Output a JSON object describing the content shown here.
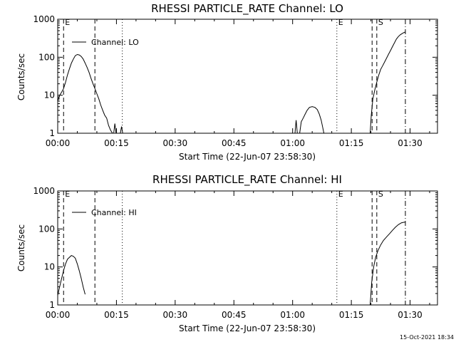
{
  "footer_timestamp": "15-Oct-2021 18:34",
  "chart_data": [
    {
      "type": "line",
      "title": "RHESSI PARTICLE_RATE Channel: LO",
      "xlabel": "Start Time (22-Jun-07 23:58:30)",
      "ylabel": "Counts/sec",
      "xunit": "minutes",
      "xlim": [
        0,
        97
      ],
      "ylim": [
        1,
        1000
      ],
      "yscale": "log",
      "x_ticks": [
        {
          "value": 0,
          "label": "00:00"
        },
        {
          "value": 15,
          "label": "00:15"
        },
        {
          "value": 30,
          "label": "00:30"
        },
        {
          "value": 45,
          "label": "00:45"
        },
        {
          "value": 60,
          "label": "01:00"
        },
        {
          "value": 75,
          "label": "01:15"
        },
        {
          "value": 90,
          "label": "01:30"
        }
      ],
      "y_ticks": [
        {
          "value": 1,
          "label": "1"
        },
        {
          "value": 10,
          "label": "10"
        },
        {
          "value": 100,
          "label": "100"
        },
        {
          "value": 1000,
          "label": "1000"
        }
      ],
      "legend": {
        "position": "top-left",
        "label": "Channel: LO"
      },
      "markers": [
        {
          "x": 1.5,
          "style": "dashed",
          "label": "E"
        },
        {
          "x": 9.5,
          "style": "dashed",
          "label": ""
        },
        {
          "x": 16.5,
          "style": "dotted",
          "label": ""
        },
        {
          "x": 71.3,
          "style": "dotted",
          "label": "E"
        },
        {
          "x": 80.3,
          "style": "dashed",
          "label": ""
        },
        {
          "x": 81.5,
          "style": "dashed",
          "label": "S"
        },
        {
          "x": 88.8,
          "style": "dashdot",
          "label": ""
        }
      ],
      "series": [
        {
          "segments": [
            [
              [
                0,
                7
              ],
              [
                0.5,
                10
              ],
              [
                1,
                12
              ],
              [
                1.5,
                15
              ],
              [
                2,
                22
              ],
              [
                2.5,
                34
              ],
              [
                3,
                50
              ],
              [
                3.5,
                70
              ],
              [
                4,
                90
              ],
              [
                4.5,
                110
              ],
              [
                5,
                118
              ],
              [
                5.5,
                115
              ],
              [
                6,
                105
              ],
              [
                6.5,
                90
              ],
              [
                7,
                70
              ],
              [
                7.5,
                54
              ],
              [
                8,
                40
              ],
              [
                8.5,
                28
              ],
              [
                9,
                20
              ],
              [
                9.5,
                15
              ],
              [
                10,
                11
              ],
              [
                10.5,
                8
              ],
              [
                11,
                5.5
              ],
              [
                11.5,
                4
              ],
              [
                12,
                3
              ],
              [
                12.5,
                2.5
              ],
              [
                13,
                1.6
              ],
              [
                13.5,
                1.2
              ],
              [
                14,
                1
              ]
            ],
            [
              [
                14.3,
                1
              ],
              [
                14.6,
                1.8
              ],
              [
                14.9,
                1
              ]
            ],
            [
              [
                16,
                1
              ],
              [
                16.3,
                1.5
              ],
              [
                16.6,
                1
              ]
            ],
            [
              [
                60.6,
                1
              ],
              [
                60.9,
                2.2
              ],
              [
                61.2,
                1
              ]
            ],
            [
              [
                61.8,
                1
              ],
              [
                62.2,
                2
              ],
              [
                62.7,
                2.5
              ],
              [
                63.2,
                3.2
              ],
              [
                63.7,
                4
              ],
              [
                64.3,
                4.8
              ],
              [
                65,
                5
              ],
              [
                65.7,
                4.8
              ],
              [
                66.3,
                4.2
              ],
              [
                66.8,
                3.2
              ],
              [
                67.3,
                2.2
              ],
              [
                67.7,
                1.4
              ],
              [
                68,
                1
              ]
            ],
            [
              [
                79.8,
                1
              ],
              [
                80.1,
                3
              ],
              [
                80.5,
                8
              ],
              [
                81,
                14
              ],
              [
                81.5,
                22
              ],
              [
                82,
                34
              ],
              [
                82.5,
                48
              ],
              [
                83,
                60
              ],
              [
                83.5,
                75
              ],
              [
                84,
                95
              ],
              [
                84.5,
                120
              ],
              [
                85,
                150
              ],
              [
                85.5,
                190
              ],
              [
                86,
                240
              ],
              [
                86.5,
                300
              ],
              [
                87,
                350
              ],
              [
                87.5,
                390
              ],
              [
                88,
                420
              ],
              [
                88.5,
                450
              ],
              [
                88.8,
                460
              ]
            ]
          ]
        }
      ]
    },
    {
      "type": "line",
      "title": "RHESSI PARTICLE_RATE Channel: HI",
      "xlabel": "Start Time (22-Jun-07 23:58:30)",
      "ylabel": "Counts/sec",
      "xunit": "minutes",
      "xlim": [
        0,
        97
      ],
      "ylim": [
        1,
        1000
      ],
      "yscale": "log",
      "x_ticks": [
        {
          "value": 0,
          "label": "00:00"
        },
        {
          "value": 15,
          "label": "00:15"
        },
        {
          "value": 30,
          "label": "00:30"
        },
        {
          "value": 45,
          "label": "00:45"
        },
        {
          "value": 60,
          "label": "01:00"
        },
        {
          "value": 75,
          "label": "01:15"
        },
        {
          "value": 90,
          "label": "01:30"
        }
      ],
      "y_ticks": [
        {
          "value": 1,
          "label": "1"
        },
        {
          "value": 10,
          "label": "10"
        },
        {
          "value": 100,
          "label": "100"
        },
        {
          "value": 1000,
          "label": "1000"
        }
      ],
      "legend": {
        "position": "top-left",
        "label": "Channel: HI"
      },
      "markers": [
        {
          "x": 1.5,
          "style": "dashed",
          "label": "E"
        },
        {
          "x": 9.5,
          "style": "dashed",
          "label": ""
        },
        {
          "x": 16.5,
          "style": "dotted",
          "label": ""
        },
        {
          "x": 71.3,
          "style": "dotted",
          "label": "E"
        },
        {
          "x": 80.3,
          "style": "dashed",
          "label": ""
        },
        {
          "x": 81.5,
          "style": "dashed",
          "label": "S"
        },
        {
          "x": 88.8,
          "style": "dashdot",
          "label": ""
        }
      ],
      "series": [
        {
          "segments": [
            [
              [
                0,
                1.8
              ],
              [
                0.5,
                3
              ],
              [
                1,
                5
              ],
              [
                1.5,
                8
              ],
              [
                2,
                12
              ],
              [
                2.5,
                16
              ],
              [
                3,
                18
              ],
              [
                3.5,
                20
              ],
              [
                4,
                19
              ],
              [
                4.5,
                17
              ],
              [
                5,
                12
              ],
              [
                5.5,
                8
              ],
              [
                6,
                5
              ],
              [
                6.5,
                3
              ],
              [
                7,
                1.9
              ]
            ],
            [
              [
                79.8,
                1
              ],
              [
                80.2,
                4
              ],
              [
                80.7,
                10
              ],
              [
                81.2,
                18
              ],
              [
                81.8,
                27
              ],
              [
                82.5,
                38
              ],
              [
                83.2,
                50
              ],
              [
                84,
                62
              ],
              [
                84.8,
                76
              ],
              [
                85.5,
                92
              ],
              [
                86.2,
                110
              ],
              [
                87,
                130
              ],
              [
                87.8,
                145
              ],
              [
                88.5,
                150
              ],
              [
                88.8,
                150
              ]
            ]
          ]
        }
      ]
    }
  ]
}
